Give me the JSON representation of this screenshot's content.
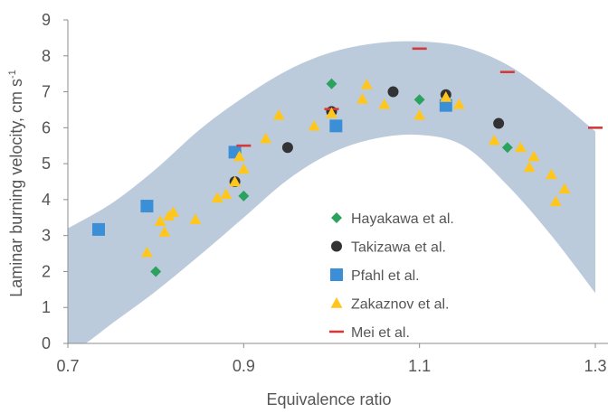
{
  "chart_data": {
    "type": "scatter",
    "xlabel": "Equivalence ratio",
    "ylabel": "Laminar burning velocity, cm s",
    "ylabel_unit_superscript": "-1",
    "xlim": [
      0.7,
      1.3
    ],
    "ylim": [
      0,
      9
    ],
    "xticks": [
      "0.7",
      "0.9",
      "1.1",
      "1.3"
    ],
    "yticks": [
      "0",
      "1",
      "2",
      "3",
      "4",
      "5",
      "6",
      "7",
      "8",
      "9"
    ],
    "grid": false,
    "legend_position": "lower-right inside",
    "uncertainty_band": {
      "color": "#bccbdc",
      "upper": [
        [
          0.7,
          3.2
        ],
        [
          0.75,
          3.9
        ],
        [
          0.8,
          4.85
        ],
        [
          0.85,
          5.95
        ],
        [
          0.9,
          6.85
        ],
        [
          0.95,
          7.6
        ],
        [
          1.0,
          8.1
        ],
        [
          1.05,
          8.35
        ],
        [
          1.1,
          8.4
        ],
        [
          1.15,
          8.25
        ],
        [
          1.2,
          7.75
        ],
        [
          1.25,
          6.9
        ],
        [
          1.3,
          5.9
        ]
      ],
      "lower": [
        [
          0.7,
          -0.2
        ],
        [
          0.72,
          0.0
        ],
        [
          0.75,
          0.55
        ],
        [
          0.8,
          1.45
        ],
        [
          0.85,
          2.45
        ],
        [
          0.9,
          3.5
        ],
        [
          0.95,
          4.55
        ],
        [
          1.0,
          5.3
        ],
        [
          1.05,
          5.7
        ],
        [
          1.1,
          5.8
        ],
        [
          1.15,
          5.5
        ],
        [
          1.2,
          4.4
        ],
        [
          1.25,
          3.0
        ],
        [
          1.3,
          1.4
        ]
      ]
    },
    "series": [
      {
        "name": "Hayakawa et al.",
        "marker": "diamond",
        "color": "#2ca25f",
        "x": [
          0.8,
          0.9,
          1.0,
          1.1,
          1.2
        ],
        "y": [
          2.0,
          4.1,
          7.22,
          6.78,
          5.45
        ]
      },
      {
        "name": "Takizawa et al.",
        "marker": "circle",
        "color": "#333333",
        "x": [
          0.89,
          0.95,
          1.0,
          1.07,
          1.13,
          1.19
        ],
        "y": [
          4.5,
          5.45,
          6.45,
          7.0,
          6.92,
          6.12
        ]
      },
      {
        "name": "Pfahl et al.",
        "marker": "square",
        "color": "#3b8fd6",
        "x": [
          0.735,
          0.79,
          0.89,
          1.005,
          1.13
        ],
        "y": [
          3.17,
          3.82,
          5.32,
          6.05,
          6.62
        ]
      },
      {
        "name": "Zakaznov et al.",
        "marker": "triangle",
        "color": "#ffc61e",
        "x": [
          0.79,
          0.805,
          0.81,
          0.815,
          0.82,
          0.845,
          0.87,
          0.88,
          0.89,
          0.895,
          0.9,
          0.925,
          0.94,
          0.98,
          1.0,
          1.035,
          1.04,
          1.06,
          1.1,
          1.13,
          1.145,
          1.185,
          1.215,
          1.225,
          1.23,
          1.25,
          1.255,
          1.265
        ],
        "y": [
          2.53,
          3.4,
          3.1,
          3.55,
          3.65,
          3.45,
          4.05,
          4.15,
          4.5,
          5.2,
          4.85,
          5.7,
          6.35,
          6.05,
          6.4,
          6.8,
          7.2,
          6.65,
          6.35,
          6.85,
          6.65,
          5.65,
          5.45,
          4.9,
          5.2,
          4.7,
          3.95,
          4.3
        ]
      },
      {
        "name": "Mei et al.",
        "marker": "dash",
        "color": "#d33a3a",
        "x": [
          0.9,
          1.0,
          1.1,
          1.2,
          1.3
        ],
        "y": [
          5.5,
          6.52,
          8.2,
          7.55,
          6.0
        ]
      }
    ]
  }
}
